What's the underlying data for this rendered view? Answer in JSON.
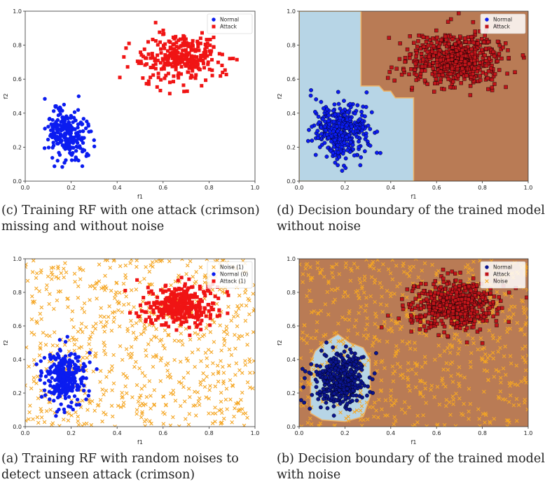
{
  "figure": {
    "captions": {
      "c": [
        "(c) Training RF with one attack (crimson)",
        "missing and without noise"
      ],
      "d": [
        "(d) Decision boundary of the trained model",
        "without noise"
      ],
      "a": [
        "(a) Training RF with random noises to",
        "detect unseen attack (crimson)"
      ],
      "b": [
        "(b) Decision boundary of the trained model",
        "with noise"
      ]
    }
  },
  "colors": {
    "normal": "#0b1cf0",
    "normal_dark": "#0a148e",
    "attack": "#f01414",
    "attack_dark": "#c0141a",
    "noise": "#f5a623",
    "region_normal": "#b7d5e6",
    "region_attack": "#b97b55",
    "boundary": "#f0b464"
  },
  "chart_data": [
    {
      "id": "c",
      "type": "scatter",
      "title": "",
      "xlabel": "f1",
      "ylabel": "f2",
      "xlim": [
        0,
        1
      ],
      "ylim": [
        0,
        1
      ],
      "xticks": [
        "0.0",
        "0.2",
        "0.4",
        "0.6",
        "0.8",
        "1.0"
      ],
      "yticks": [
        "0.0",
        "0.2",
        "0.4",
        "0.6",
        "0.8",
        "1.0"
      ],
      "legend": [
        "Normal",
        "Attack"
      ],
      "series": [
        {
          "name": "Normal",
          "marker": "circle",
          "color": "#0b1cf0",
          "distribution": {
            "cx": 0.18,
            "cy": 0.28,
            "sx": 0.045,
            "sy": 0.075,
            "n": 240
          }
        },
        {
          "name": "Attack",
          "marker": "square",
          "color": "#f01414",
          "distribution": {
            "cx": 0.68,
            "cy": 0.72,
            "sx": 0.085,
            "sy": 0.07,
            "n": 300
          }
        }
      ]
    },
    {
      "id": "d",
      "type": "scatter",
      "title": "",
      "xlabel": "f1",
      "ylabel": "f2",
      "xlim": [
        0,
        1
      ],
      "ylim": [
        0,
        1
      ],
      "xticks": [
        "0.0",
        "0.2",
        "0.4",
        "0.6",
        "0.8",
        "1.0"
      ],
      "yticks": [
        "0.0",
        "0.2",
        "0.4",
        "0.6",
        "0.8",
        "1.0"
      ],
      "legend": [
        "Normal",
        "Attack"
      ],
      "decision_boundary": {
        "normal_region": [
          [
            0,
            0
          ],
          [
            0,
            1
          ],
          [
            0.27,
            1
          ],
          [
            0.27,
            0.56
          ],
          [
            0.35,
            0.56
          ],
          [
            0.37,
            0.53
          ],
          [
            0.4,
            0.53
          ],
          [
            0.42,
            0.49
          ],
          [
            0.5,
            0.49
          ],
          [
            0.5,
            0
          ]
        ],
        "attack_region_color": "#b97b55",
        "normal_region_color": "#b7d5e6"
      },
      "series": [
        {
          "name": "Normal",
          "marker": "circle",
          "color": "#0b1cf0",
          "distribution": {
            "cx": 0.19,
            "cy": 0.29,
            "sx": 0.06,
            "sy": 0.08,
            "n": 420
          }
        },
        {
          "name": "Attack",
          "marker": "square",
          "color": "#c0141a",
          "distribution": {
            "cx": 0.68,
            "cy": 0.72,
            "sx": 0.1,
            "sy": 0.08,
            "n": 620
          }
        }
      ]
    },
    {
      "id": "a",
      "type": "scatter",
      "title": "",
      "xlabel": "f1",
      "ylabel": "f2",
      "xlim": [
        0,
        1
      ],
      "ylim": [
        0,
        1
      ],
      "xticks": [
        "0.0",
        "0.2",
        "0.4",
        "0.6",
        "0.8",
        "1.0"
      ],
      "yticks": [
        "0.0",
        "0.2",
        "0.4",
        "0.6",
        "0.8",
        "1.0"
      ],
      "legend": [
        "Noise (1)",
        "Normal (0)",
        "Attack (1)"
      ],
      "series": [
        {
          "name": "Noise (1)",
          "marker": "x",
          "color": "#f5a623",
          "distribution": {
            "uniform": true,
            "n": 700
          }
        },
        {
          "name": "Normal (0)",
          "marker": "circle",
          "color": "#0b1cf0",
          "distribution": {
            "cx": 0.17,
            "cy": 0.29,
            "sx": 0.045,
            "sy": 0.075,
            "n": 300
          }
        },
        {
          "name": "Attack (1)",
          "marker": "square",
          "color": "#f01414",
          "distribution": {
            "cx": 0.68,
            "cy": 0.72,
            "sx": 0.08,
            "sy": 0.065,
            "n": 330
          }
        }
      ]
    },
    {
      "id": "b",
      "type": "scatter",
      "title": "",
      "xlabel": "f1",
      "ylabel": "f2",
      "xlim": [
        0,
        1
      ],
      "ylim": [
        0,
        1
      ],
      "xticks": [
        "0.0",
        "0.2",
        "0.4",
        "0.6",
        "0.8",
        "1.0"
      ],
      "yticks": [
        "0.0",
        "0.2",
        "0.4",
        "0.6",
        "0.8",
        "1.0"
      ],
      "legend": [
        "Normal",
        "Attack",
        "Noise"
      ],
      "decision_boundary": {
        "normal_region": [
          [
            0.05,
            0.08
          ],
          [
            0.05,
            0.38
          ],
          [
            0.07,
            0.45
          ],
          [
            0.11,
            0.5
          ],
          [
            0.17,
            0.55
          ],
          [
            0.22,
            0.5
          ],
          [
            0.28,
            0.47
          ],
          [
            0.31,
            0.4
          ],
          [
            0.31,
            0.18
          ],
          [
            0.28,
            0.06
          ],
          [
            0.2,
            0.03
          ],
          [
            0.1,
            0.04
          ]
        ],
        "attack_region_color": "#b97b55",
        "normal_region_color": "#b7d5e6"
      },
      "series": [
        {
          "name": "Noise",
          "marker": "x",
          "color": "#f5a623",
          "distribution": {
            "uniform": true,
            "n": 700
          }
        },
        {
          "name": "Normal",
          "marker": "circle",
          "color": "#0a148e",
          "distribution": {
            "cx": 0.18,
            "cy": 0.28,
            "sx": 0.055,
            "sy": 0.08,
            "n": 420
          }
        },
        {
          "name": "Attack",
          "marker": "square",
          "color": "#c0141a",
          "distribution": {
            "cx": 0.68,
            "cy": 0.72,
            "sx": 0.09,
            "sy": 0.075,
            "n": 520
          }
        }
      ]
    }
  ]
}
